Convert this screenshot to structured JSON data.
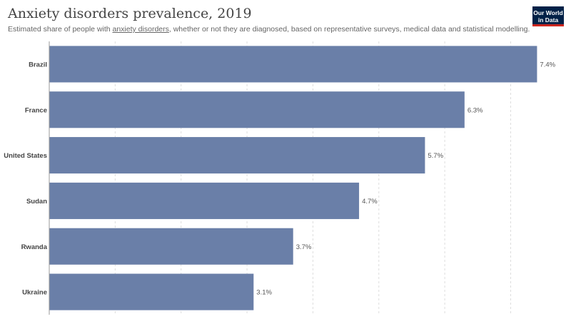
{
  "header": {
    "title": "Anxiety disorders prevalence, 2019",
    "subtitle_prefix": "Estimated share of people with ",
    "subtitle_link": "anxiety disorders",
    "subtitle_suffix": ", whether or not they are diagnosed, based on representative surveys, medical data and statistical modelling.",
    "logo_line1": "Our World",
    "logo_line2": "in Data"
  },
  "colors": {
    "bar": "#6a7fa8",
    "logo_bg": "#002147",
    "logo_accent": "#ce261e",
    "grid": "#dddddd"
  },
  "chart_data": {
    "type": "bar",
    "orientation": "horizontal",
    "title": "Anxiety disorders prevalence, 2019",
    "categories": [
      "Brazil",
      "France",
      "United States",
      "Sudan",
      "Rwanda",
      "Ukraine"
    ],
    "values": [
      7.4,
      6.3,
      5.7,
      4.7,
      3.7,
      3.1
    ],
    "value_labels": [
      "7.4%",
      "6.3%",
      "5.7%",
      "4.7%",
      "3.7%",
      "3.1%"
    ],
    "xlim": [
      0,
      7.5
    ],
    "grid": true
  }
}
